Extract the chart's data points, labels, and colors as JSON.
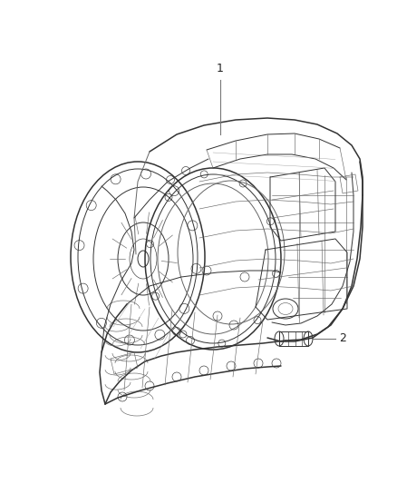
{
  "background_color": "#ffffff",
  "fig_width": 4.38,
  "fig_height": 5.33,
  "dpi": 100,
  "label_1": "1",
  "label_2": "2",
  "line_color": "#333333",
  "line_color_light": "#666666",
  "line_color_vlight": "#999999",
  "text_color": "#222222",
  "text_fontsize": 9,
  "leader_line_color": "#777777",
  "lw_main": 1.1,
  "lw_med": 0.7,
  "lw_thin": 0.45,
  "lw_hair": 0.3
}
